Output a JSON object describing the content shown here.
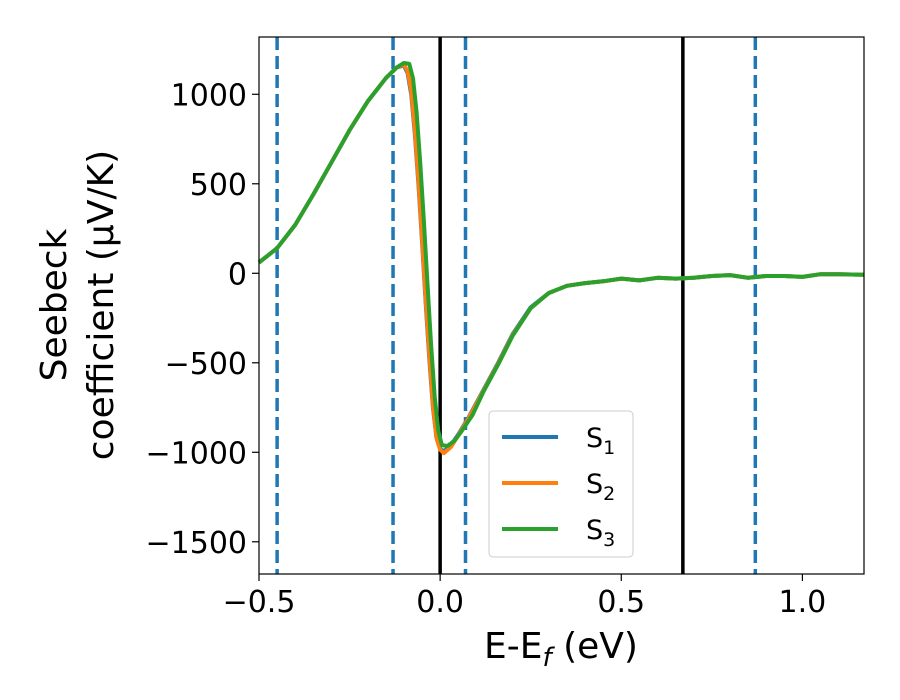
{
  "chart_data": {
    "type": "line",
    "title": "",
    "xlabel": "E-E",
    "xlabel_sub": "f",
    "xlabel_unit": " (eV)",
    "ylabel_line1": "Seebeck",
    "ylabel_line2": "coefficient  (μV/K)",
    "xlim": [
      -0.5,
      1.17
    ],
    "ylim": [
      -1680,
      1320
    ],
    "xticks": [
      -0.5,
      0.0,
      0.5,
      1.0
    ],
    "xtick_labels": [
      "−0.5",
      "0.0",
      "0.5",
      "1.0"
    ],
    "yticks": [
      -1500,
      -1000,
      -500,
      0,
      500,
      1000
    ],
    "ytick_labels": [
      "−1500",
      "−1000",
      "−500",
      "0",
      "500",
      "1000"
    ],
    "grid": false,
    "legend_position": "lower-center",
    "vertical_lines": [
      {
        "x": -0.45,
        "style": "dashed",
        "color": "#1f77b4"
      },
      {
        "x": -0.13,
        "style": "dashed",
        "color": "#1f77b4"
      },
      {
        "x": 0.0,
        "style": "solid",
        "color": "#000000"
      },
      {
        "x": 0.07,
        "style": "dashed",
        "color": "#1f77b4"
      },
      {
        "x": 0.67,
        "style": "solid",
        "color": "#000000"
      },
      {
        "x": 0.87,
        "style": "dashed",
        "color": "#1f77b4"
      }
    ],
    "series": [
      {
        "name": "S",
        "sub": "1",
        "color": "#1f77b4",
        "points": [
          [
            -0.5,
            60
          ],
          [
            -0.45,
            140
          ],
          [
            -0.4,
            270
          ],
          [
            -0.35,
            440
          ],
          [
            -0.3,
            620
          ],
          [
            -0.25,
            800
          ],
          [
            -0.2,
            960
          ],
          [
            -0.15,
            1090
          ],
          [
            -0.12,
            1150
          ],
          [
            -0.1,
            1160
          ],
          [
            -0.09,
            1120
          ],
          [
            -0.08,
            1000
          ],
          [
            -0.07,
            780
          ],
          [
            -0.06,
            500
          ],
          [
            -0.05,
            180
          ],
          [
            -0.04,
            -160
          ],
          [
            -0.03,
            -480
          ],
          [
            -0.02,
            -750
          ],
          [
            -0.01,
            -920
          ],
          [
            0.0,
            -980
          ],
          [
            0.01,
            -995
          ],
          [
            0.03,
            -960
          ],
          [
            0.05,
            -900
          ],
          [
            0.08,
            -800
          ],
          [
            0.12,
            -650
          ],
          [
            0.16,
            -500
          ],
          [
            0.2,
            -340
          ],
          [
            0.25,
            -190
          ],
          [
            0.3,
            -110
          ],
          [
            0.35,
            -70
          ],
          [
            0.4,
            -55
          ],
          [
            0.45,
            -45
          ],
          [
            0.5,
            -30
          ],
          [
            0.55,
            -40
          ],
          [
            0.6,
            -25
          ],
          [
            0.65,
            -30
          ],
          [
            0.7,
            -25
          ],
          [
            0.75,
            -15
          ],
          [
            0.8,
            -10
          ],
          [
            0.85,
            -25
          ],
          [
            0.9,
            -15
          ],
          [
            0.95,
            -15
          ],
          [
            1.0,
            -20
          ],
          [
            1.05,
            -5
          ],
          [
            1.1,
            -5
          ],
          [
            1.17,
            -8
          ]
        ]
      },
      {
        "name": "S",
        "sub": "2",
        "color": "#ff7f0e",
        "points": [
          [
            -0.5,
            60
          ],
          [
            -0.45,
            140
          ],
          [
            -0.4,
            270
          ],
          [
            -0.35,
            440
          ],
          [
            -0.3,
            620
          ],
          [
            -0.25,
            800
          ],
          [
            -0.2,
            960
          ],
          [
            -0.15,
            1090
          ],
          [
            -0.12,
            1150
          ],
          [
            -0.1,
            1165
          ],
          [
            -0.09,
            1130
          ],
          [
            -0.08,
            1020
          ],
          [
            -0.07,
            800
          ],
          [
            -0.06,
            520
          ],
          [
            -0.05,
            200
          ],
          [
            -0.04,
            -140
          ],
          [
            -0.03,
            -460
          ],
          [
            -0.02,
            -740
          ],
          [
            -0.01,
            -920
          ],
          [
            0.0,
            -985
          ],
          [
            0.01,
            -1005
          ],
          [
            0.03,
            -970
          ],
          [
            0.05,
            -905
          ],
          [
            0.08,
            -805
          ],
          [
            0.12,
            -655
          ],
          [
            0.16,
            -505
          ],
          [
            0.2,
            -345
          ],
          [
            0.25,
            -195
          ],
          [
            0.3,
            -110
          ],
          [
            0.35,
            -70
          ],
          [
            0.4,
            -55
          ],
          [
            0.45,
            -45
          ],
          [
            0.5,
            -30
          ],
          [
            0.55,
            -40
          ],
          [
            0.6,
            -25
          ],
          [
            0.65,
            -30
          ],
          [
            0.7,
            -25
          ],
          [
            0.75,
            -15
          ],
          [
            0.8,
            -10
          ],
          [
            0.85,
            -25
          ],
          [
            0.9,
            -15
          ],
          [
            0.95,
            -15
          ],
          [
            1.0,
            -20
          ],
          [
            1.05,
            -5
          ],
          [
            1.1,
            -5
          ],
          [
            1.17,
            -8
          ]
        ]
      },
      {
        "name": "S",
        "sub": "3",
        "color": "#2ca02c",
        "points": [
          [
            -0.5,
            60
          ],
          [
            -0.45,
            140
          ],
          [
            -0.4,
            270
          ],
          [
            -0.35,
            440
          ],
          [
            -0.3,
            620
          ],
          [
            -0.25,
            800
          ],
          [
            -0.2,
            960
          ],
          [
            -0.15,
            1090
          ],
          [
            -0.12,
            1150
          ],
          [
            -0.1,
            1175
          ],
          [
            -0.085,
            1170
          ],
          [
            -0.075,
            1090
          ],
          [
            -0.065,
            900
          ],
          [
            -0.055,
            620
          ],
          [
            -0.045,
            300
          ],
          [
            -0.035,
            -60
          ],
          [
            -0.025,
            -400
          ],
          [
            -0.015,
            -690
          ],
          [
            -0.005,
            -880
          ],
          [
            0.005,
            -960
          ],
          [
            0.02,
            -965
          ],
          [
            0.04,
            -935
          ],
          [
            0.06,
            -880
          ],
          [
            0.09,
            -790
          ],
          [
            0.12,
            -660
          ],
          [
            0.16,
            -510
          ],
          [
            0.2,
            -350
          ],
          [
            0.25,
            -195
          ],
          [
            0.3,
            -110
          ],
          [
            0.35,
            -70
          ],
          [
            0.4,
            -55
          ],
          [
            0.45,
            -45
          ],
          [
            0.5,
            -30
          ],
          [
            0.55,
            -40
          ],
          [
            0.6,
            -25
          ],
          [
            0.65,
            -30
          ],
          [
            0.7,
            -25
          ],
          [
            0.75,
            -15
          ],
          [
            0.8,
            -10
          ],
          [
            0.85,
            -25
          ],
          [
            0.9,
            -15
          ],
          [
            0.95,
            -15
          ],
          [
            1.0,
            -20
          ],
          [
            1.05,
            -5
          ],
          [
            1.1,
            -5
          ],
          [
            1.17,
            -8
          ]
        ]
      }
    ]
  }
}
